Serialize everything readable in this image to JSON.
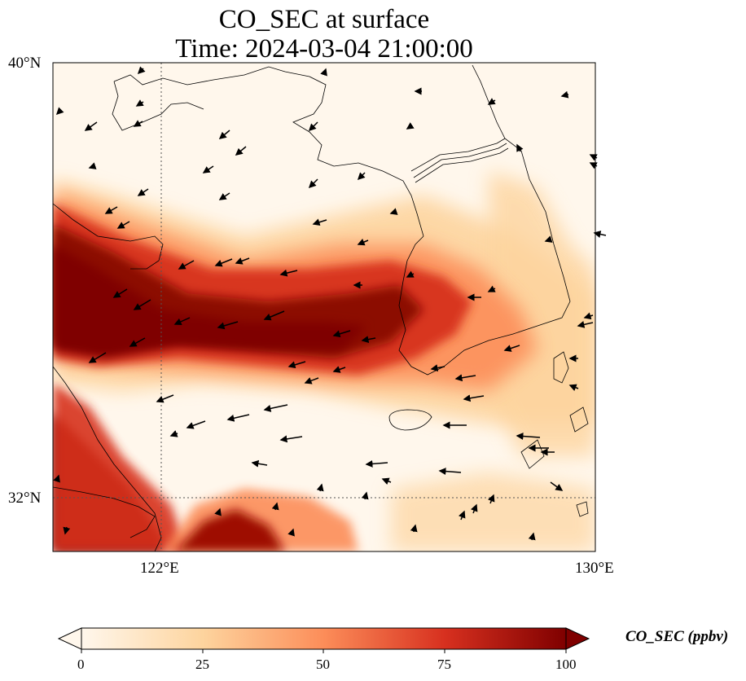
{
  "title": {
    "line1": "CO_SEC at surface",
    "line2": "Time: 2024-03-04 21:00:00"
  },
  "map": {
    "projection": "lat-lon",
    "extent": {
      "lon_min": 120.0,
      "lon_max": 130.0,
      "lat_min": 31.0,
      "lat_max": 40.0
    },
    "lat_ticks": [
      {
        "value": 40,
        "label": "40°N"
      },
      {
        "value": 32,
        "label": "32°N"
      }
    ],
    "lon_ticks": [
      {
        "value": 122,
        "label": "122°E"
      },
      {
        "value": 130,
        "label": "130°E"
      }
    ],
    "gridlines": "dotted",
    "coastlines": true,
    "wind_vectors": true
  },
  "colorbar": {
    "colormap": "OrRd",
    "min": 0,
    "max": 100,
    "ticks": [
      "0",
      "25",
      "50",
      "75",
      "100"
    ],
    "extend": "both",
    "label": "CO_SEC (ppbv)",
    "colors": [
      "#fff7ec",
      "#fdd49e",
      "#fc8d59",
      "#d7301f",
      "#7f0000"
    ]
  }
}
